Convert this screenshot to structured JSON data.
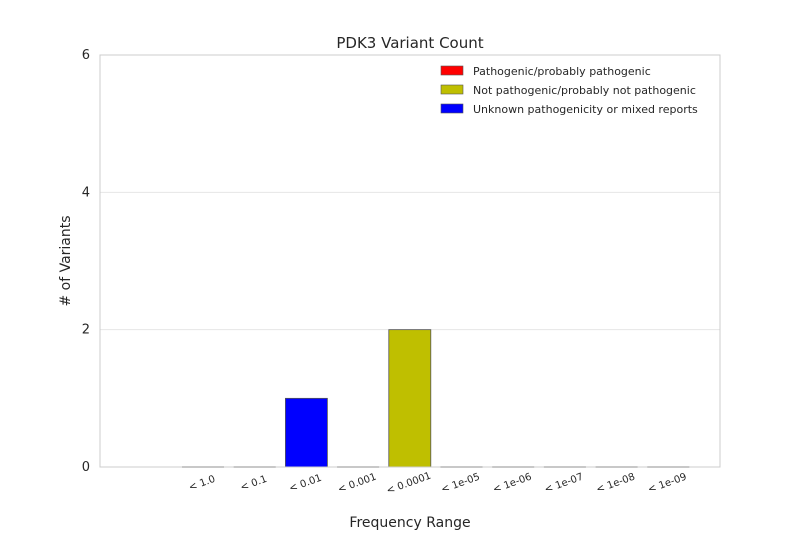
{
  "chart_data": {
    "type": "bar",
    "stacked": true,
    "title": "PDK3 Variant Count",
    "xlabel": "Frequency Range",
    "ylabel": "# of Variants",
    "ylim": [
      0,
      6
    ],
    "yticks": [
      "0",
      "2",
      "4",
      "6"
    ],
    "grid": "horizontal",
    "legend_position": "top-right",
    "categories": [
      "< 1.0",
      "< 0.1",
      "< 0.01",
      "< 0.001",
      "< 0.0001",
      "< 1e-05",
      "< 1e-06",
      "< 1e-07",
      "< 1e-08",
      "< 1e-09"
    ],
    "series": [
      {
        "name": "Pathogenic/probably pathogenic",
        "color": "#ff0000",
        "values": [
          0,
          0,
          0,
          0,
          0,
          0,
          0,
          0,
          0,
          0
        ]
      },
      {
        "name": "Not pathogenic/probably not pathogenic",
        "color": "#bfbf00",
        "values": [
          0,
          0,
          0,
          0,
          2,
          0,
          0,
          0,
          0,
          0
        ]
      },
      {
        "name": "Unknown pathogenicity or mixed reports",
        "color": "#0000ff",
        "values": [
          0,
          0,
          1,
          0,
          0,
          0,
          0,
          0,
          0,
          0
        ]
      }
    ]
  }
}
